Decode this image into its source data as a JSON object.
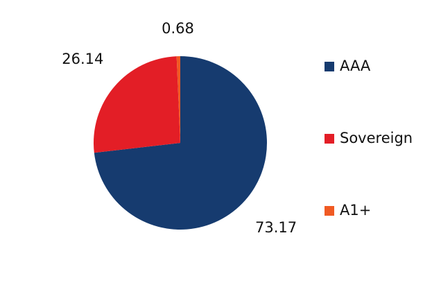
{
  "chart_data": {
    "type": "pie",
    "categories": [
      "AAA",
      "Sovereign",
      "A1+"
    ],
    "values": [
      73.17,
      26.14,
      0.68
    ],
    "colors": [
      "#163b6f",
      "#e31e26",
      "#f05a23"
    ],
    "legend": "right"
  }
}
